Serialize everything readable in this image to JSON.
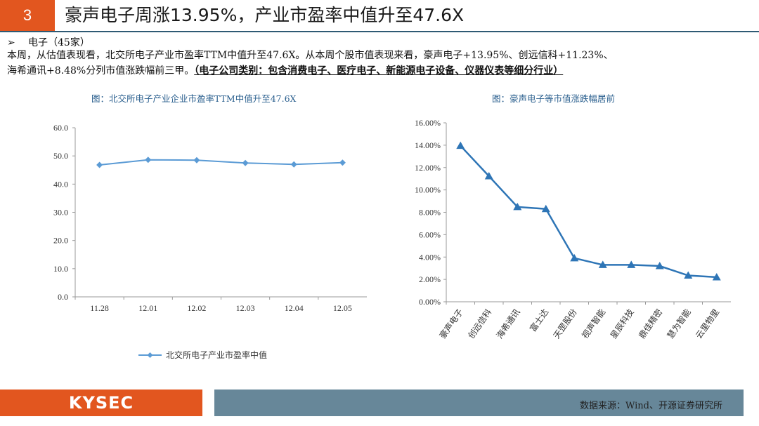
{
  "header": {
    "slide_number": "3",
    "title": "豪声电子周涨13.95%，产业市盈率中值升至47.6X"
  },
  "section": {
    "arrow": "➢",
    "heading": "电子（45家）",
    "desc_line1": "本周，从估值表现看，北交所电子产业市盈率TTM中值升至47.6X。从本周个股市值表现来看，豪声电子+13.95%、创远信科+11.23%、",
    "desc_line2_plain": "海希通讯+8.48%分列市值涨跌幅前三甲。",
    "desc_line2_note": "（电子公司类别：包含消费电子、医疗电子、新能源电子设备、仪器仪表等细分行业）"
  },
  "chart_data": [
    {
      "type": "line",
      "title": "图：北交所电子产业企业市盈率TTM中值升至47.6X",
      "categories": [
        "11.28",
        "12.01",
        "12.02",
        "12.03",
        "12.04",
        "12.05"
      ],
      "series": [
        {
          "name": "北交所电子产业市盈率中值",
          "values": [
            46.8,
            48.6,
            48.5,
            47.5,
            47.0,
            47.6
          ]
        }
      ],
      "ylim": [
        0,
        60
      ],
      "yticks": [
        "0.0",
        "10.0",
        "20.0",
        "30.0",
        "40.0",
        "50.0",
        "60.0"
      ],
      "legend_position": "bottom",
      "color": "#5b9bd5"
    },
    {
      "type": "line",
      "title": "图：豪声电子等市值涨跌幅居前",
      "categories": [
        "豪声电子",
        "创远信科",
        "海希通讯",
        "富士达",
        "天罡股份",
        "视声智能",
        "星辰科技",
        "鼎佳精密",
        "慧为智能",
        "云里物里"
      ],
      "values": [
        13.95,
        11.23,
        8.48,
        8.3,
        3.9,
        3.3,
        3.3,
        3.2,
        2.35,
        2.2
      ],
      "ylim": [
        0,
        16
      ],
      "yticks": [
        "0.00%",
        "2.00%",
        "4.00%",
        "6.00%",
        "8.00%",
        "10.00%",
        "12.00%",
        "14.00%",
        "16.00%"
      ],
      "marker": "triangle",
      "color": "#2e75b6"
    }
  ],
  "footer": {
    "logo_text": "KYSEC",
    "source": "数据来源：Wind、开源证券研究所"
  }
}
